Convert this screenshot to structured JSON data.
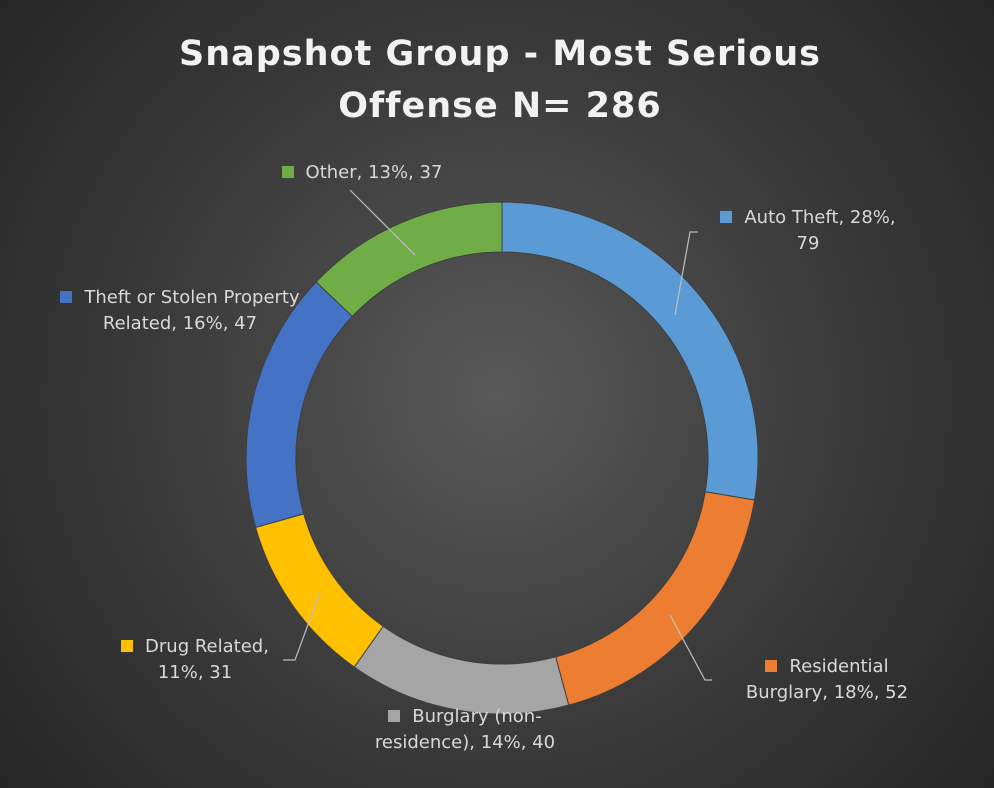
{
  "chart_data": {
    "type": "donut",
    "title": "Snapshot Group - Most Serious Offense N= 286",
    "categories": [
      "Auto Theft",
      "Residential Burglary",
      "Burglary (non-residence)",
      "Drug Related",
      "Theft or Stolen Property Related",
      "Other"
    ],
    "values": [
      79,
      52,
      40,
      31,
      47,
      37
    ],
    "value_labels": [
      ", 28%, 79",
      ", 18%, 52",
      ", 14%, 40",
      ", 11%, 31",
      ", 16%, 47",
      ", 13%, 37"
    ],
    "colors": [
      "#5b9bd5",
      "#ed7d31",
      "#a5a5a5",
      "#ffc000",
      "#4472c4",
      "#70ad47"
    ]
  }
}
